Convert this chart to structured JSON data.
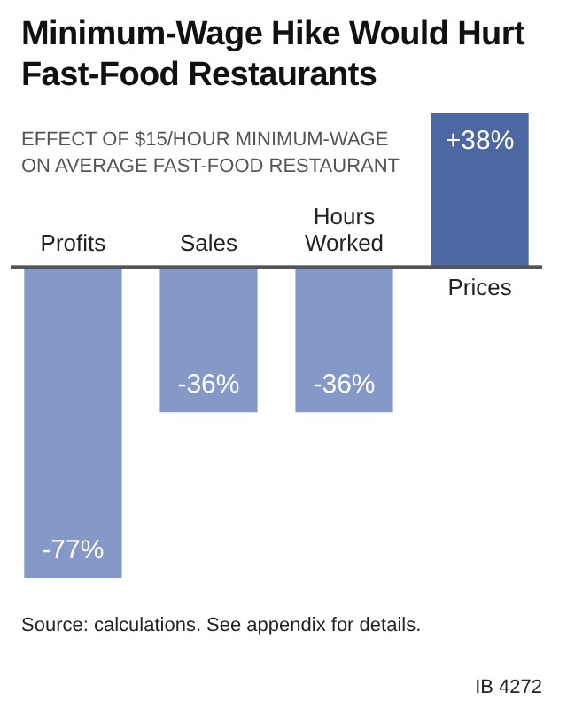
{
  "chart_data": {
    "type": "bar",
    "title": "Minimum-Wage Hike Would Hurt Fast-Food Restaurants",
    "subtitle": "EFFECT OF $15/HOUR MINIMUM-WAGE ON AVERAGE FAST-FOOD RESTAURANT",
    "categories": [
      "Profits",
      "Sales",
      "Hours Worked",
      "Prices"
    ],
    "values": [
      -77,
      -36,
      -36,
      38
    ],
    "value_labels": [
      "-77%",
      "-36%",
      "-36%",
      "+38%"
    ],
    "colors": [
      "#8499c8",
      "#8499c8",
      "#8499c8",
      "#4d67a3"
    ],
    "ylim": [
      -77,
      38
    ],
    "annotations": [
      "Source: calculations. See appendix for details.",
      "IB 4272"
    ]
  }
}
